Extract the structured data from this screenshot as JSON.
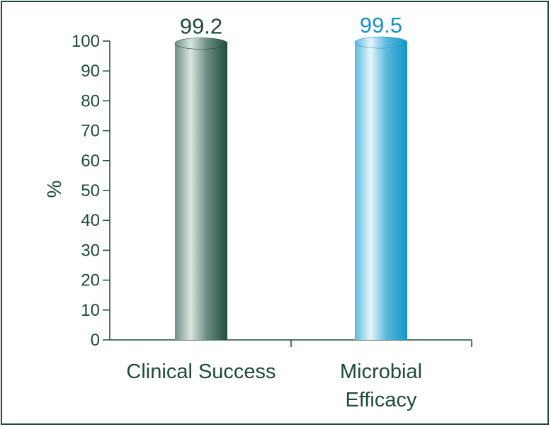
{
  "chart_data": {
    "type": "bar",
    "categories": [
      "Clinical Success",
      "Microbial Efficacy"
    ],
    "category_lines": [
      [
        "Clinical Success"
      ],
      [
        "Microbial",
        "Efficacy"
      ]
    ],
    "values": [
      99.2,
      99.5
    ],
    "value_labels": [
      "99.2",
      "99.5"
    ],
    "title": "",
    "xlabel": "",
    "ylabel": "%",
    "ylim": [
      0,
      100
    ],
    "yticks": [
      0,
      10,
      20,
      30,
      40,
      50,
      60,
      70,
      80,
      90,
      100
    ],
    "grid": false,
    "legend": "none",
    "bar_style": "cylinder"
  },
  "colors": {
    "frame": "#1d4a3c",
    "axis": "#1d4a3c",
    "text": "#1d4a3c",
    "series": [
      {
        "dark": "#1f4c3e",
        "mid": "#6f8f85",
        "light": "#d9e6e0",
        "label": "#1d4a3c"
      },
      {
        "dark": "#1195c6",
        "mid": "#5cb8dc",
        "light": "#e6f4fa",
        "label": "#1a93c4"
      }
    ]
  }
}
